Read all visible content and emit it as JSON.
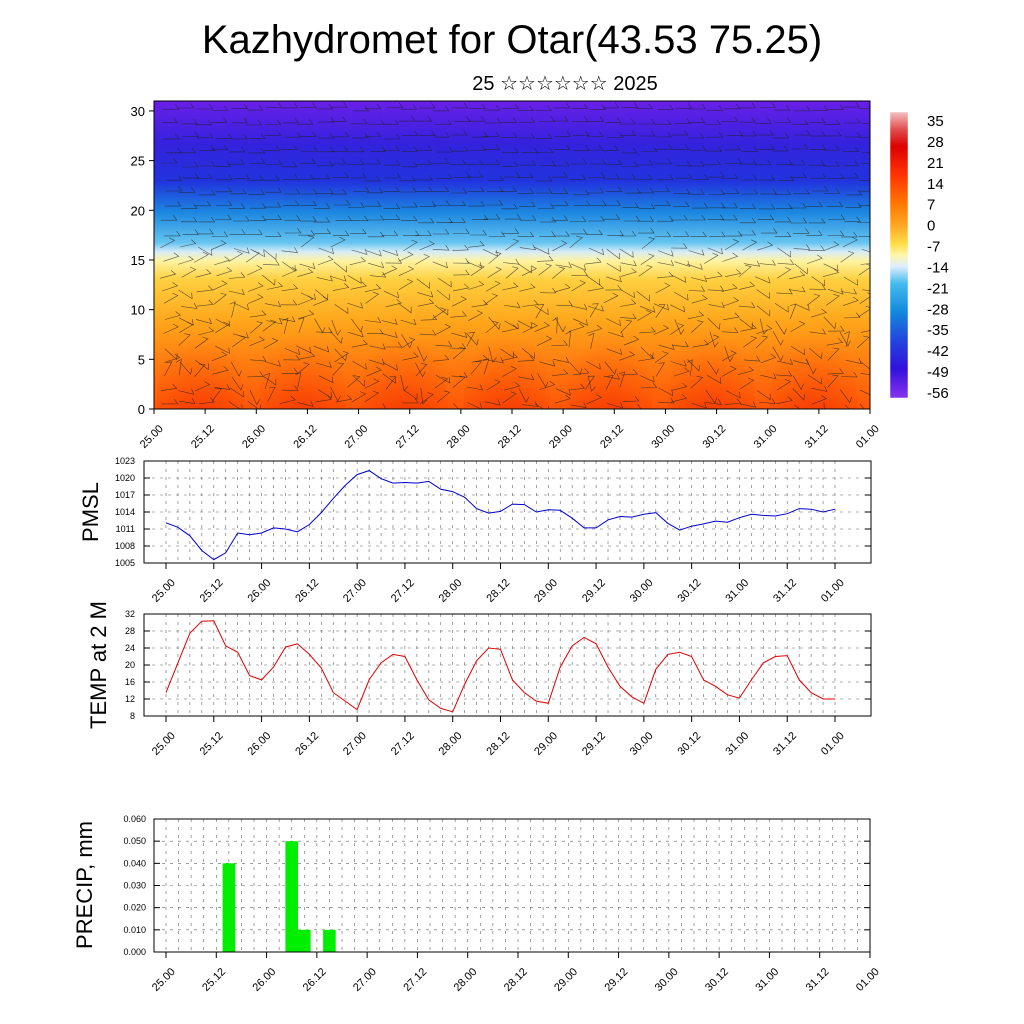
{
  "title": "Kazhydromet for Otar(43.53 75.25)",
  "subtitle": "25 ☆☆☆☆☆☆ 2025",
  "x_tick_labels": [
    "25.00",
    "25.12",
    "26.00",
    "26.12",
    "27.00",
    "27.12",
    "28.00",
    "28.12",
    "29.00",
    "29.12",
    "30.00",
    "30.12",
    "31.00",
    "31.12",
    "01.00"
  ],
  "chart_data": [
    {
      "type": "heatmap",
      "xlabel": "",
      "ylabel": "",
      "x_ticks": [
        "25.00",
        "25.12",
        "26.00",
        "26.12",
        "27.00",
        "27.12",
        "28.00",
        "28.12",
        "29.00",
        "29.12",
        "30.00",
        "30.12",
        "31.00",
        "31.12",
        "01.00"
      ],
      "y_ticks": [
        0,
        5,
        10,
        15,
        20,
        25,
        30
      ],
      "ylim": [
        0,
        31
      ],
      "colorbar_ticks": [
        35,
        28,
        21,
        14,
        7,
        0,
        -7,
        -14,
        -21,
        -28,
        -35,
        -42,
        -49,
        -56
      ],
      "colorbar_colors": [
        "#ee9999",
        "#dd0000",
        "#ee3300",
        "#ff6600",
        "#ff9900",
        "#ffcc33",
        "#ffee88",
        "#cce8ff",
        "#33aaee",
        "#1177dd",
        "#2244dd",
        "#2200dd",
        "#5511ee",
        "#8833ee"
      ],
      "overlay": "wind barbs"
    },
    {
      "type": "line",
      "ylabel": "PMSL",
      "ylim": [
        1005,
        1023
      ],
      "y_ticks": [
        1005,
        1008,
        1011,
        1014,
        1017,
        1020,
        1023
      ],
      "line_color": "#0000cc",
      "values": [
        1012.1,
        1011.3,
        1009.8,
        1007.2,
        1005.6,
        1006.8,
        1010.3,
        1010.0,
        1010.3,
        1011.2,
        1011.0,
        1010.5,
        1011.8,
        1013.9,
        1016.4,
        1018.7,
        1020.6,
        1021.3,
        1019.9,
        1019.1,
        1019.2,
        1019.1,
        1019.4,
        1018.0,
        1017.6,
        1016.6,
        1014.6,
        1013.8,
        1014.1,
        1015.4,
        1015.3,
        1014.0,
        1014.4,
        1014.3,
        1012.9,
        1011.2,
        1011.2,
        1012.6,
        1013.2,
        1013.1,
        1013.6,
        1013.9,
        1012.0,
        1010.8,
        1011.5,
        1011.9,
        1012.4,
        1012.2,
        1013.0,
        1013.6,
        1013.4,
        1013.3,
        1013.7,
        1014.6,
        1014.5,
        1014.0,
        1014.5
      ],
      "x_ticks": [
        "25.00",
        "25.12",
        "26.00",
        "26.12",
        "27.00",
        "27.12",
        "28.00",
        "28.12",
        "29.00",
        "29.12",
        "30.00",
        "30.12",
        "31.00",
        "31.12",
        "01.00"
      ]
    },
    {
      "type": "line",
      "ylabel": "TEMP at 2 M",
      "ylim": [
        8,
        32
      ],
      "y_ticks": [
        8,
        12,
        16,
        20,
        24,
        28,
        32
      ],
      "line_color": "#dd0000",
      "values": [
        13.5,
        20.5,
        27.5,
        30.3,
        30.4,
        24.5,
        23.0,
        17.5,
        16.5,
        19.5,
        24.2,
        25.0,
        22.5,
        19.3,
        13.5,
        11.5,
        9.5,
        16.5,
        20.5,
        22.5,
        22.0,
        16.5,
        11.8,
        9.8,
        9.0,
        15.5,
        21.0,
        24.0,
        23.7,
        16.5,
        13.5,
        11.5,
        11.0,
        19.5,
        24.5,
        26.5,
        25.0,
        19.5,
        15.0,
        12.5,
        11.0,
        19.0,
        22.5,
        23.0,
        22.0,
        16.5,
        15.0,
        13.0,
        12.2,
        16.5,
        20.5,
        22.0,
        22.2,
        16.5,
        13.5,
        12.0,
        12.0
      ],
      "x_ticks": [
        "25.00",
        "25.12",
        "26.00",
        "26.12",
        "27.00",
        "27.12",
        "28.00",
        "28.12",
        "29.00",
        "29.12",
        "30.00",
        "30.12",
        "31.00",
        "31.12",
        "01.00"
      ]
    },
    {
      "type": "bar",
      "ylabel": "PRECIP, mm",
      "ylim": [
        0,
        0.06
      ],
      "y_ticks": [
        "0.000",
        "0.010",
        "0.020",
        "0.030",
        "0.040",
        "0.050",
        "0.060"
      ],
      "bar_color": "#00ee00",
      "categories": [
        "25.15",
        "26.06",
        "26.09",
        "26.15"
      ],
      "values": [
        0.04,
        0.05,
        0.01,
        0.01
      ],
      "x_ticks": [
        "25.00",
        "25.12",
        "26.00",
        "26.12",
        "27.00",
        "27.12",
        "28.00",
        "28.12",
        "29.00",
        "29.12",
        "30.00",
        "30.12",
        "31.00",
        "31.12",
        "01.00"
      ]
    }
  ]
}
